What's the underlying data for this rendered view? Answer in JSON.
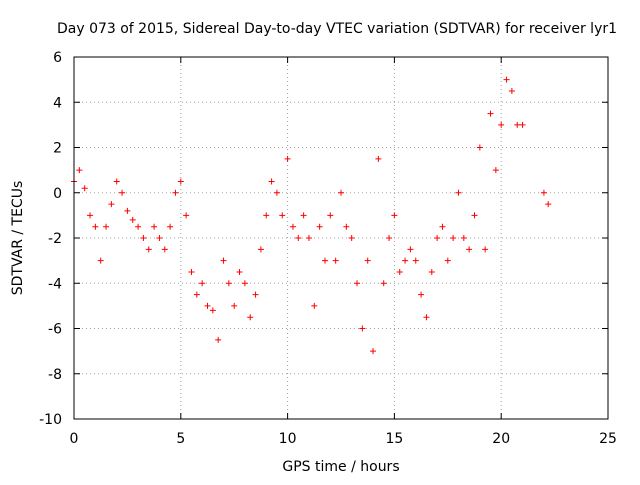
{
  "chart_data": {
    "type": "scatter",
    "title": "Day 073 of 2015, Sidereal Day-to-day VTEC variation (SDTVAR) for receiver lyr1",
    "xlabel": "GPS time / hours",
    "ylabel": "SDTVAR / TECUs",
    "xlim": [
      0,
      25
    ],
    "ylim": [
      -10,
      6
    ],
    "xticks": [
      0,
      5,
      10,
      15,
      20,
      25
    ],
    "yticks": [
      -10,
      -8,
      -6,
      -4,
      -2,
      0,
      2,
      4,
      6
    ],
    "grid": true,
    "marker": "+",
    "series": [
      {
        "name": "SDTVAR",
        "color": "#ff0000",
        "x": [
          0.0,
          0.25,
          0.5,
          0.75,
          1.0,
          1.25,
          1.5,
          1.75,
          2.0,
          2.25,
          2.5,
          2.75,
          3.0,
          3.25,
          3.5,
          3.75,
          4.0,
          4.25,
          4.5,
          4.75,
          5.0,
          5.25,
          5.5,
          5.75,
          6.0,
          6.25,
          6.5,
          6.75,
          7.0,
          7.25,
          7.5,
          7.75,
          8.0,
          8.25,
          8.5,
          8.75,
          9.0,
          9.25,
          9.5,
          9.75,
          10.0,
          10.25,
          10.5,
          10.75,
          11.0,
          11.25,
          11.5,
          11.75,
          12.0,
          12.25,
          12.5,
          12.75,
          13.0,
          13.25,
          13.5,
          13.75,
          14.0,
          14.25,
          14.5,
          14.75,
          15.0,
          15.25,
          15.5,
          15.75,
          16.0,
          16.25,
          16.5,
          16.75,
          17.0,
          17.25,
          17.5,
          17.75,
          18.0,
          18.25,
          18.5,
          18.75,
          19.0,
          19.25,
          19.5,
          19.75,
          20.0,
          20.25,
          20.5,
          20.75,
          21.0,
          22.0,
          22.2
        ],
        "y": [
          0.5,
          1.0,
          0.2,
          -1.0,
          -1.5,
          -3.0,
          -1.5,
          -0.5,
          0.5,
          0.0,
          -0.8,
          -1.2,
          -1.5,
          -2.0,
          -2.5,
          -1.5,
          -2.0,
          -2.5,
          -1.5,
          0.0,
          0.5,
          -1.0,
          -3.5,
          -4.5,
          -4.0,
          -5.0,
          -5.2,
          -6.5,
          -3.0,
          -4.0,
          -5.0,
          -3.5,
          -4.0,
          -5.5,
          -4.5,
          -2.5,
          -1.0,
          0.5,
          0.0,
          -1.0,
          1.5,
          -1.5,
          -2.0,
          -1.0,
          -2.0,
          -5.0,
          -1.5,
          -3.0,
          -1.0,
          -3.0,
          0.0,
          -1.5,
          -2.0,
          -4.0,
          -6.0,
          -3.0,
          -7.0,
          1.5,
          -4.0,
          -2.0,
          -1.0,
          -3.5,
          -3.0,
          -2.5,
          -3.0,
          -4.5,
          -5.5,
          -3.5,
          -2.0,
          -1.5,
          -3.0,
          -2.0,
          0.0,
          -2.0,
          -2.5,
          -1.0,
          2.0,
          -2.5,
          3.5,
          1.0,
          3.0,
          5.0,
          4.5,
          3.0,
          3.0,
          0.0,
          -0.5
        ]
      }
    ]
  }
}
